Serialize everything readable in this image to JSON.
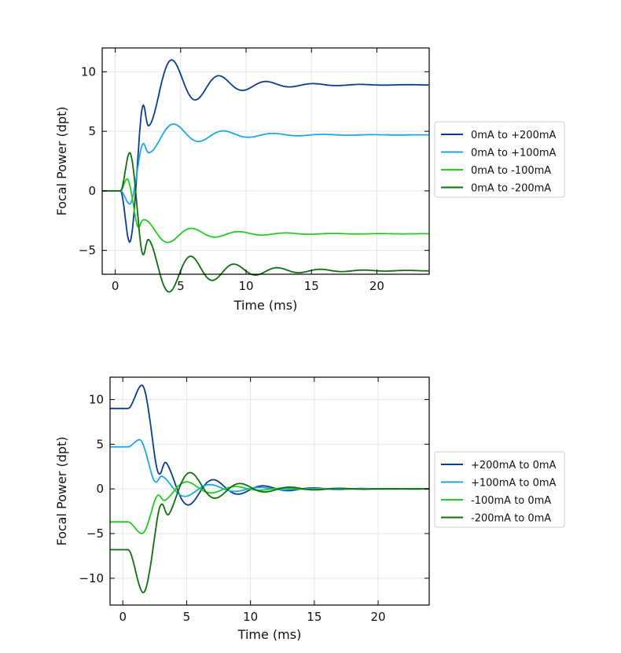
{
  "chart_data": [
    {
      "type": "line",
      "title": "",
      "xlabel": "Time (ms)",
      "ylabel": "Focal Power (dpt)",
      "xlim": [
        -1,
        24
      ],
      "ylim": [
        -7,
        12
      ],
      "xticks": [
        0,
        5,
        10,
        15,
        20
      ],
      "yticks": [
        -5,
        0,
        5,
        10
      ],
      "grid": true,
      "legend_position": "right",
      "series": [
        {
          "name": "0mA to +200mA",
          "color": "#0a3d91",
          "start": 0,
          "final": 8.9,
          "dip": -4.3,
          "dip_t": 1.1,
          "rise_t": 1.2,
          "period": 3.6,
          "tau": 3.6
        },
        {
          "name": "0mA to +100mA",
          "color": "#1ea6e8",
          "start": 0,
          "final": 4.7,
          "dip": -1.1,
          "dip_t": 1.1,
          "rise_t": 1.2,
          "period": 3.8,
          "tau": 3.8
        },
        {
          "name": "0mA to -100mA",
          "color": "#22cc22",
          "start": 0,
          "final": -3.6,
          "dip": 1.0,
          "dip_t": 0.9,
          "rise_t": 1.0,
          "period": 3.6,
          "tau": 3.8
        },
        {
          "name": "0mA to -200mA",
          "color": "#0e6e12",
          "start": 0,
          "final": -6.7,
          "dip": 3.2,
          "dip_t": 1.1,
          "rise_t": 1.2,
          "period": 3.3,
          "tau": 4.2
        }
      ]
    },
    {
      "type": "line",
      "title": "",
      "xlabel": "Time (ms)",
      "ylabel": "Focal Power (dpt)",
      "xlim": [
        -1,
        24
      ],
      "ylim": [
        -13,
        12.5
      ],
      "xticks": [
        0,
        5,
        10,
        15,
        20
      ],
      "yticks": [
        -10,
        -5,
        0,
        5,
        10
      ],
      "grid": true,
      "legend_position": "right",
      "series": [
        {
          "name": "+200mA to 0mA",
          "color": "#0a3d91",
          "start": 9.0,
          "final": 0,
          "dip": 11.6,
          "dip_t": 1.5,
          "rise_t": 1.6,
          "period": 3.9,
          "tau": 3.5
        },
        {
          "name": "+100mA to 0mA",
          "color": "#1ea6e8",
          "start": 4.7,
          "final": 0,
          "dip": 5.5,
          "dip_t": 1.3,
          "rise_t": 1.5,
          "period": 3.9,
          "tau": 3.5
        },
        {
          "name": "-100mA to 0mA",
          "color": "#22cc22",
          "start": -3.7,
          "final": 0,
          "dip": -5.0,
          "dip_t": 1.5,
          "rise_t": 1.5,
          "period": 3.8,
          "tau": 3.5
        },
        {
          "name": "-200mA to 0mA",
          "color": "#0e6e12",
          "start": -6.8,
          "final": 0,
          "dip": -11.6,
          "dip_t": 1.6,
          "rise_t": 1.7,
          "period": 3.9,
          "tau": 3.5
        }
      ]
    }
  ]
}
